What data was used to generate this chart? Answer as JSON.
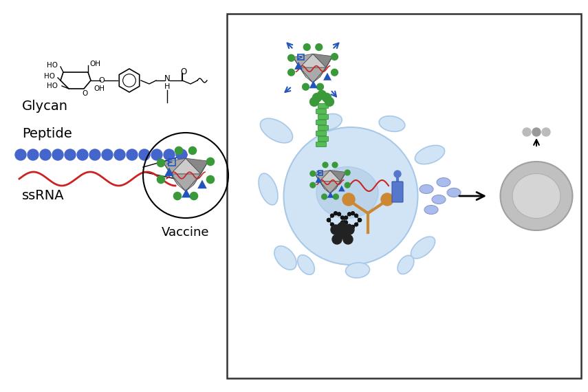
{
  "bg_color": "#ffffff",
  "glycan_label": "Glycan",
  "peptide_label": "Peptide",
  "ssrna_label": "ssRNA",
  "vaccine_label": "Vaccine",
  "dendritic_fill": "#d0e4f5",
  "dendritic_edge": "#a8c8e8",
  "nucleus_fill": "#b8d0e8",
  "t_cell_outer": "#c0c0c0",
  "t_cell_edge": "#a0a0a0",
  "t_cell_inner": "#d8d8d8",
  "green_color": "#3a9a3a",
  "blue_tri_color": "#2255bb",
  "red_wave_color": "#cc2222",
  "blue_bead_color": "#4466cc",
  "orange_color": "#cc8833",
  "dna_color": "#111111",
  "cytokine_color": "#aabbee",
  "box_edge": "#333333"
}
